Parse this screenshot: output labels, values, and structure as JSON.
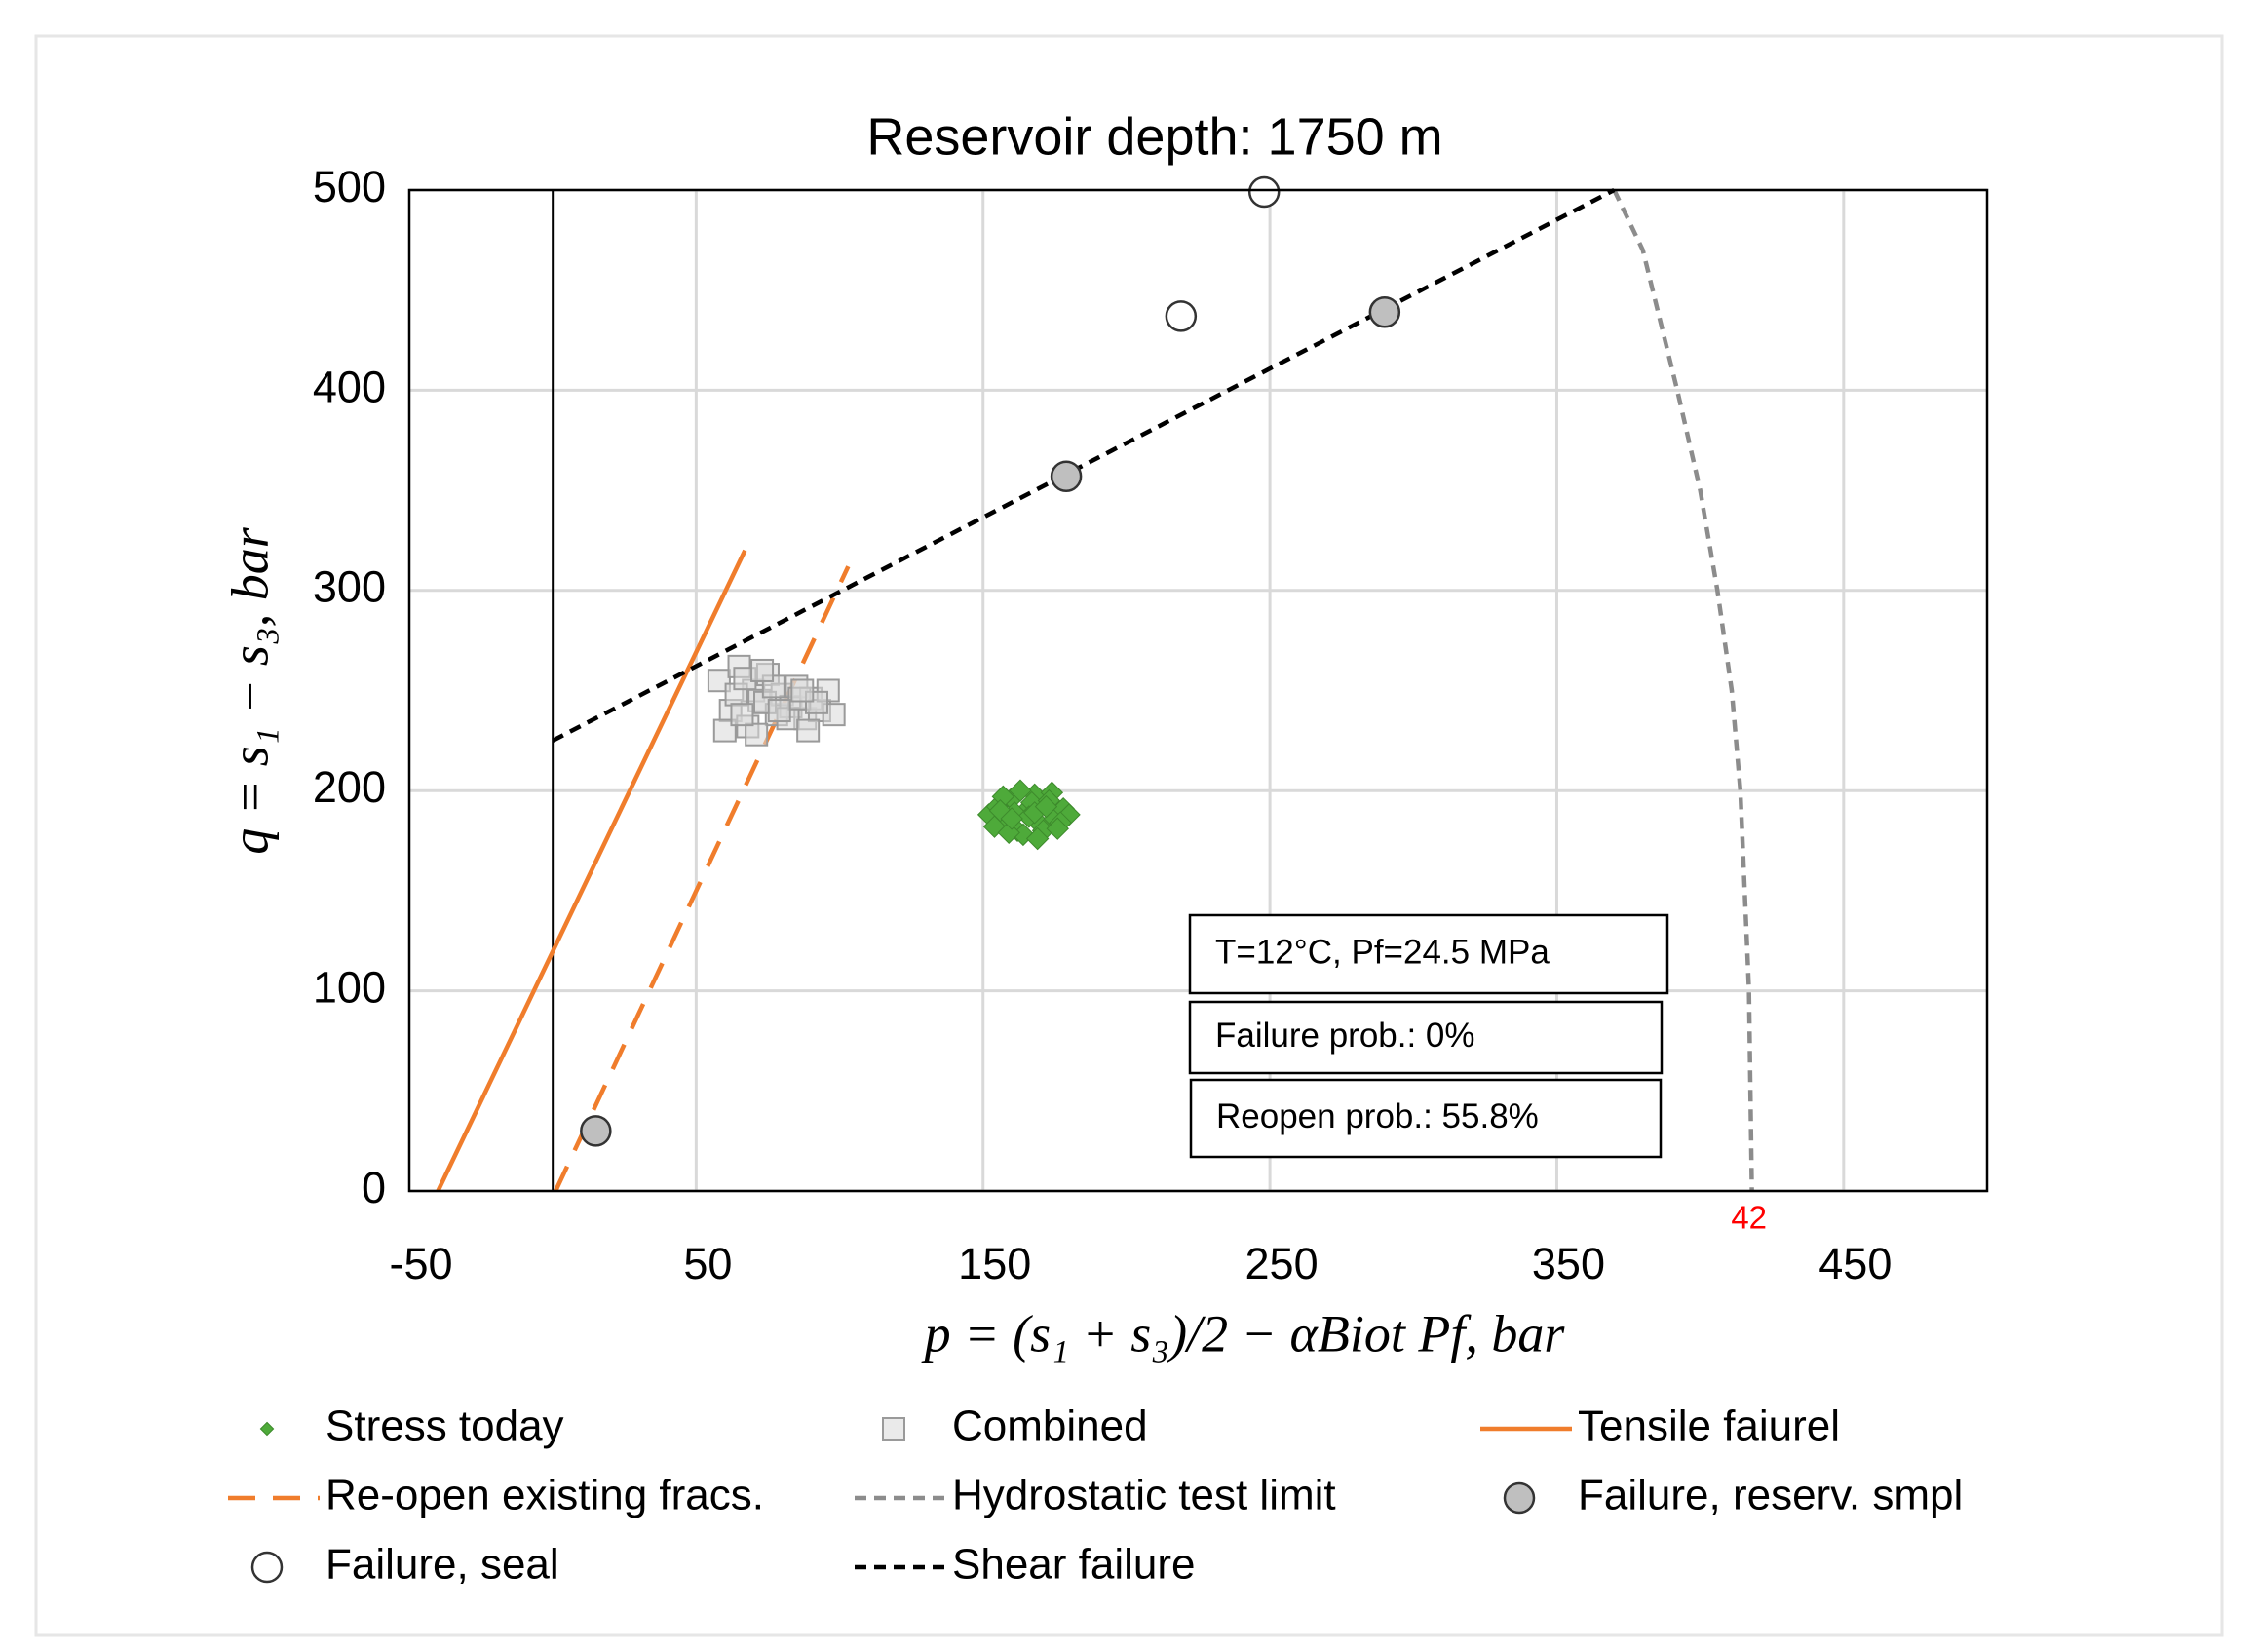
{
  "chart_data": {
    "type": "scatter",
    "title": "Reservoir depth: 1750 m",
    "xlabel": "p = (s₁ + s₃)/2 − αBiot Pf, bar",
    "ylabel": "q = s₁ − s₃, bar",
    "xlim": [
      -50,
      500
    ],
    "xticks": [
      -50,
      50,
      150,
      250,
      350,
      450
    ],
    "ylim": [
      0,
      500
    ],
    "yticks": [
      0,
      100,
      200,
      300,
      400,
      500
    ],
    "grid": true,
    "xline": 0,
    "series": [
      {
        "name": "Stress today",
        "kind": "marker",
        "marker": "diamond",
        "color": "#4eaa3a",
        "x": [
          152,
          155,
          158,
          160,
          162,
          165,
          168,
          170,
          172,
          175,
          178,
          180,
          154,
          157,
          161,
          164,
          167,
          171,
          174,
          177,
          156,
          159,
          163,
          166,
          169,
          173,
          176,
          160,
          168,
          172
        ],
        "y": [
          188,
          192,
          185,
          196,
          180,
          190,
          198,
          183,
          193,
          186,
          191,
          188,
          182,
          197,
          189,
          178,
          194,
          180,
          199,
          184,
          190,
          179,
          200,
          187,
          176,
          195,
          181,
          186,
          189,
          192
        ]
      },
      {
        "name": "Combined",
        "kind": "marker",
        "marker": "square",
        "color": "#d9d9d9",
        "x": [
          58,
          62,
          65,
          68,
          70,
          72,
          75,
          78,
          80,
          83,
          85,
          88,
          90,
          93,
          96,
          98,
          60,
          64,
          67,
          71,
          74,
          77,
          82,
          86,
          89,
          92,
          66,
          73,
          79,
          87
        ],
        "y": [
          255,
          240,
          262,
          232,
          250,
          245,
          258,
          238,
          248,
          242,
          252,
          236,
          246,
          240,
          250,
          238,
          230,
          248,
          256,
          228,
          244,
          252,
          236,
          246,
          230,
          244,
          238,
          260,
          240,
          250
        ]
      },
      {
        "name": "Tensile faiurel",
        "kind": "line",
        "dash": "solid",
        "color": "#f07d2c",
        "x": [
          -40,
          67
        ],
        "y": [
          0,
          320
        ]
      },
      {
        "name": "Re-open existing fracs.",
        "kind": "line",
        "dash": "long",
        "color": "#f07d2c",
        "x": [
          1,
          103
        ],
        "y": [
          0,
          312
        ]
      },
      {
        "name": "Hydrostatic test limit",
        "kind": "line",
        "dash": "short",
        "color": "#8c8c8c",
        "x": [
          370,
          380,
          392,
          400,
          406,
          411,
          414,
          417,
          418
        ],
        "y": [
          500,
          470,
          400,
          350,
          300,
          250,
          200,
          100,
          0
        ]
      },
      {
        "name": "Failure, reserv. smpl",
        "kind": "marker",
        "marker": "circle",
        "color": "#bfbfbf",
        "x": [
          290,
          179,
          15
        ],
        "y": [
          439,
          357,
          30
        ]
      },
      {
        "name": "Failure, seal",
        "kind": "marker",
        "marker": "circle",
        "color": "#ffffff",
        "x": [
          248,
          219
        ],
        "y": [
          499,
          437
        ]
      },
      {
        "name": "Shear failure",
        "kind": "line",
        "dash": "short",
        "color": "#000000",
        "x": [
          0,
          370
        ],
        "y": [
          225,
          500
        ]
      }
    ],
    "annotations": [
      {
        "text": "42",
        "x": 417,
        "color": "#ff0000"
      }
    ],
    "text_boxes": [
      "T=12°C, Pf=24.5 MPa",
      "Failure prob.: 0%",
      "Reopen prob.: 55.8%"
    ]
  }
}
